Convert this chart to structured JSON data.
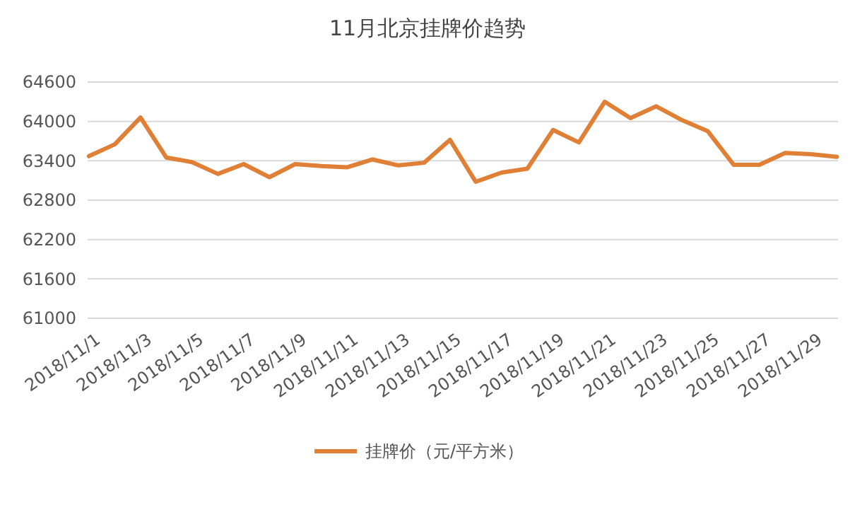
{
  "chart_data": {
    "type": "line",
    "title": "11月北京挂牌价趋势",
    "categories": [
      "2018/11/1",
      null,
      "2018/11/3",
      null,
      "2018/11/5",
      null,
      "2018/11/7",
      null,
      "2018/11/9",
      null,
      "2018/11/11",
      null,
      "2018/11/13",
      null,
      "2018/11/15",
      null,
      "2018/11/17",
      null,
      "2018/11/19",
      null,
      "2018/11/21",
      null,
      "2018/11/23",
      null,
      "2018/11/25",
      null,
      "2018/11/27",
      null,
      "2018/11/29",
      null
    ],
    "series": [
      {
        "name": "挂牌价（元/平方米）",
        "color": "#e07f36",
        "values": [
          63470,
          63650,
          64060,
          63450,
          63380,
          63200,
          63350,
          63150,
          63350,
          63320,
          63300,
          63420,
          63330,
          63370,
          63720,
          63080,
          63220,
          63280,
          63870,
          63680,
          64300,
          64050,
          64230,
          64020,
          63850,
          63340,
          63340,
          63520,
          63500,
          63460
        ]
      }
    ],
    "ylim": [
      61000,
      64600
    ],
    "yticks": [
      61000,
      61600,
      62200,
      62800,
      63400,
      64000,
      64600
    ],
    "grid": "y",
    "legend": "bottom",
    "marker": "none",
    "line_style": "solid"
  }
}
